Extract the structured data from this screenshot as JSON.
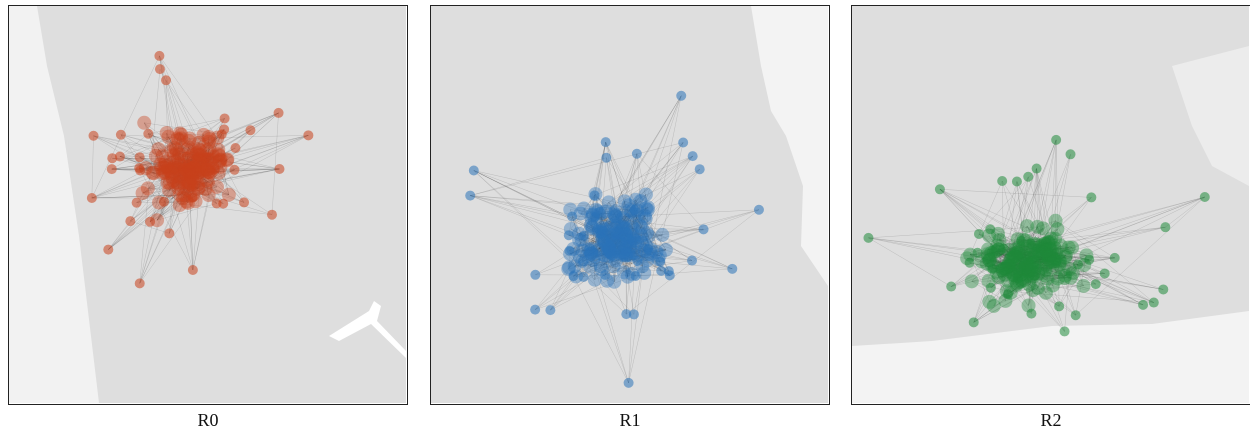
{
  "panels": [
    {
      "label": "R0"
    },
    {
      "label": "R1"
    },
    {
      "label": "R2"
    }
  ]
}
